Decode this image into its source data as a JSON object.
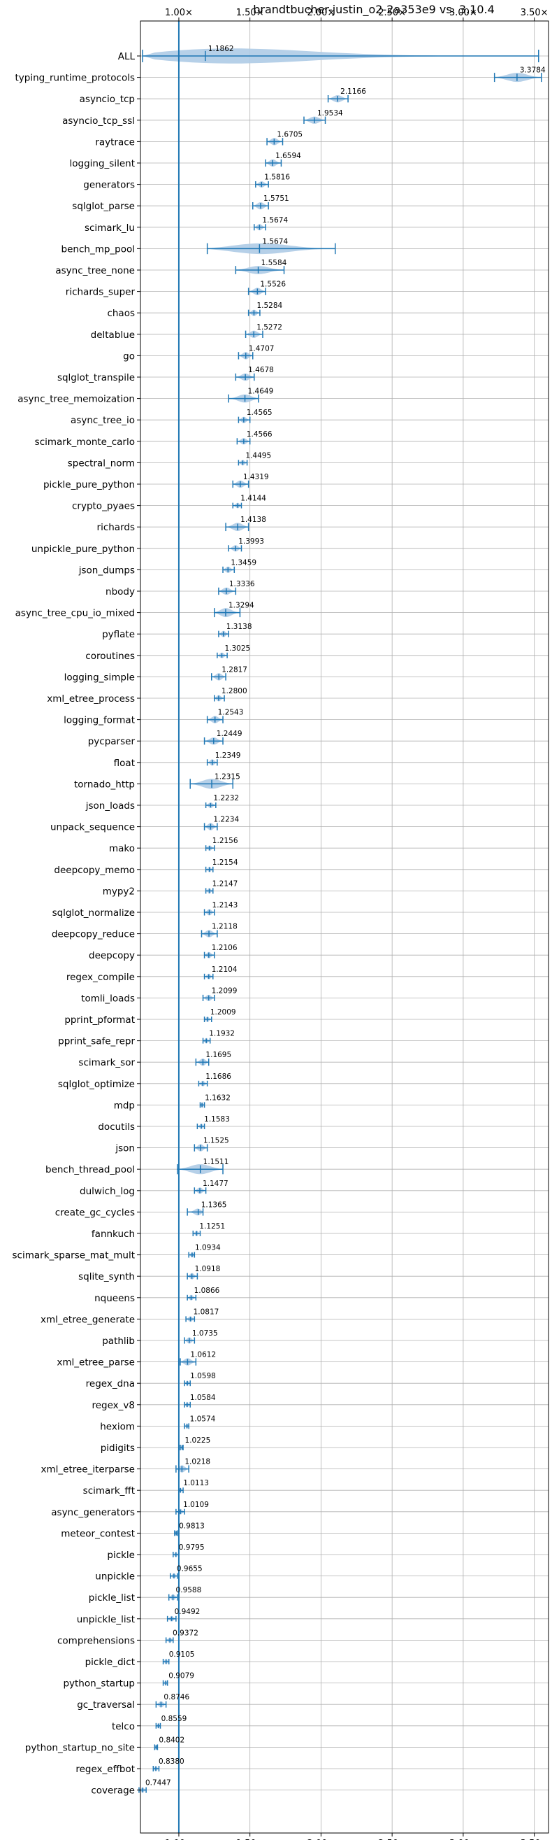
{
  "chart_data": {
    "type": "violin",
    "title": "brandtbucher-justin_o2-2a353e9 vs. 3.10.4",
    "xlabel": "",
    "ylabel": "",
    "xlim": [
      0.73,
      3.6
    ],
    "x_ticks": [
      1.0,
      1.5,
      2.0,
      2.5,
      3.0,
      3.5
    ],
    "x_tick_labels": [
      "1.00×",
      "1.50×",
      "2.00×",
      "2.50×",
      "3.00×",
      "3.50×"
    ],
    "baseline": 1.0,
    "grid": true,
    "colors": {
      "violin": "#aecbe6",
      "line": "#1f77b4",
      "grid": "#b0b0b0"
    },
    "benchmarks": [
      {
        "name": "ALL",
        "value": 1.1862,
        "min": 0.7447,
        "max": 3.53,
        "width": 1.0
      },
      {
        "name": "typing_runtime_protocols",
        "value": 3.3784,
        "min": 3.22,
        "max": 3.55,
        "width": 0.5
      },
      {
        "name": "asyncio_tcp",
        "value": 2.1166,
        "min": 2.05,
        "max": 2.19,
        "width": 0.4
      },
      {
        "name": "asyncio_tcp_ssl",
        "value": 1.9534,
        "min": 1.88,
        "max": 2.03,
        "width": 0.4
      },
      {
        "name": "raytrace",
        "value": 1.6705,
        "min": 1.62,
        "max": 1.73,
        "width": 0.4
      },
      {
        "name": "logging_silent",
        "value": 1.6594,
        "min": 1.61,
        "max": 1.72,
        "width": 0.4
      },
      {
        "name": "generators",
        "value": 1.5816,
        "min": 1.54,
        "max": 1.63,
        "width": 0.35
      },
      {
        "name": "sqlglot_parse",
        "value": 1.5751,
        "min": 1.52,
        "max": 1.63,
        "width": 0.4
      },
      {
        "name": "scimark_lu",
        "value": 1.5674,
        "min": 1.53,
        "max": 1.61,
        "width": 0.35
      },
      {
        "name": "bench_mp_pool",
        "value": 1.5674,
        "min": 1.2,
        "max": 2.1,
        "width": 0.6
      },
      {
        "name": "async_tree_none",
        "value": 1.5584,
        "min": 1.4,
        "max": 1.74,
        "width": 0.45
      },
      {
        "name": "richards_super",
        "value": 1.5526,
        "min": 1.49,
        "max": 1.61,
        "width": 0.4
      },
      {
        "name": "chaos",
        "value": 1.5284,
        "min": 1.49,
        "max": 1.57,
        "width": 0.35
      },
      {
        "name": "deltablue",
        "value": 1.5272,
        "min": 1.47,
        "max": 1.59,
        "width": 0.4
      },
      {
        "name": "go",
        "value": 1.4707,
        "min": 1.42,
        "max": 1.52,
        "width": 0.4
      },
      {
        "name": "sqlglot_transpile",
        "value": 1.4678,
        "min": 1.4,
        "max": 1.53,
        "width": 0.4
      },
      {
        "name": "async_tree_memoization",
        "value": 1.4649,
        "min": 1.35,
        "max": 1.56,
        "width": 0.45
      },
      {
        "name": "async_tree_io",
        "value": 1.4565,
        "min": 1.42,
        "max": 1.5,
        "width": 0.35
      },
      {
        "name": "scimark_monte_carlo",
        "value": 1.4566,
        "min": 1.41,
        "max": 1.5,
        "width": 0.35
      },
      {
        "name": "spectral_norm",
        "value": 1.4495,
        "min": 1.42,
        "max": 1.48,
        "width": 0.3
      },
      {
        "name": "pickle_pure_python",
        "value": 1.4319,
        "min": 1.38,
        "max": 1.49,
        "width": 0.4
      },
      {
        "name": "crypto_pyaes",
        "value": 1.4144,
        "min": 1.38,
        "max": 1.44,
        "width": 0.3
      },
      {
        "name": "richards",
        "value": 1.4138,
        "min": 1.33,
        "max": 1.49,
        "width": 0.45
      },
      {
        "name": "unpickle_pure_python",
        "value": 1.3993,
        "min": 1.35,
        "max": 1.44,
        "width": 0.35
      },
      {
        "name": "json_dumps",
        "value": 1.3459,
        "min": 1.31,
        "max": 1.39,
        "width": 0.35
      },
      {
        "name": "nbody",
        "value": 1.3336,
        "min": 1.28,
        "max": 1.4,
        "width": 0.4
      },
      {
        "name": "async_tree_cpu_io_mixed",
        "value": 1.3294,
        "min": 1.25,
        "max": 1.43,
        "width": 0.5
      },
      {
        "name": "pyflate",
        "value": 1.3138,
        "min": 1.28,
        "max": 1.35,
        "width": 0.35
      },
      {
        "name": "coroutines",
        "value": 1.3025,
        "min": 1.27,
        "max": 1.34,
        "width": 0.3
      },
      {
        "name": "logging_simple",
        "value": 1.2817,
        "min": 1.23,
        "max": 1.33,
        "width": 0.4
      },
      {
        "name": "xml_etree_process",
        "value": 1.28,
        "min": 1.25,
        "max": 1.32,
        "width": 0.35
      },
      {
        "name": "logging_format",
        "value": 1.2543,
        "min": 1.2,
        "max": 1.31,
        "width": 0.4
      },
      {
        "name": "pycparser",
        "value": 1.2449,
        "min": 1.18,
        "max": 1.31,
        "width": 0.4
      },
      {
        "name": "float",
        "value": 1.2349,
        "min": 1.2,
        "max": 1.27,
        "width": 0.35
      },
      {
        "name": "tornado_http",
        "value": 1.2315,
        "min": 1.08,
        "max": 1.38,
        "width": 0.55
      },
      {
        "name": "json_loads",
        "value": 1.2232,
        "min": 1.19,
        "max": 1.26,
        "width": 0.3
      },
      {
        "name": "unpack_sequence",
        "value": 1.2234,
        "min": 1.18,
        "max": 1.27,
        "width": 0.4
      },
      {
        "name": "mako",
        "value": 1.2156,
        "min": 1.19,
        "max": 1.25,
        "width": 0.3
      },
      {
        "name": "deepcopy_memo",
        "value": 1.2154,
        "min": 1.19,
        "max": 1.24,
        "width": 0.3
      },
      {
        "name": "mypy2",
        "value": 1.2147,
        "min": 1.19,
        "max": 1.24,
        "width": 0.3
      },
      {
        "name": "sqlglot_normalize",
        "value": 1.2143,
        "min": 1.18,
        "max": 1.25,
        "width": 0.35
      },
      {
        "name": "deepcopy_reduce",
        "value": 1.2118,
        "min": 1.16,
        "max": 1.27,
        "width": 0.4
      },
      {
        "name": "deepcopy",
        "value": 1.2106,
        "min": 1.18,
        "max": 1.25,
        "width": 0.35
      },
      {
        "name": "regex_compile",
        "value": 1.2104,
        "min": 1.18,
        "max": 1.24,
        "width": 0.3
      },
      {
        "name": "tomli_loads",
        "value": 1.2099,
        "min": 1.17,
        "max": 1.25,
        "width": 0.35
      },
      {
        "name": "pprint_pformat",
        "value": 1.2009,
        "min": 1.18,
        "max": 1.23,
        "width": 0.3
      },
      {
        "name": "pprint_safe_repr",
        "value": 1.1932,
        "min": 1.17,
        "max": 1.22,
        "width": 0.3
      },
      {
        "name": "scimark_sor",
        "value": 1.1695,
        "min": 1.12,
        "max": 1.21,
        "width": 0.4
      },
      {
        "name": "sqlglot_optimize",
        "value": 1.1686,
        "min": 1.14,
        "max": 1.2,
        "width": 0.3
      },
      {
        "name": "mdp",
        "value": 1.1632,
        "min": 1.15,
        "max": 1.18,
        "width": 0.25
      },
      {
        "name": "docutils",
        "value": 1.1583,
        "min": 1.13,
        "max": 1.18,
        "width": 0.3
      },
      {
        "name": "json",
        "value": 1.1525,
        "min": 1.11,
        "max": 1.2,
        "width": 0.4
      },
      {
        "name": "bench_thread_pool",
        "value": 1.1511,
        "min": 0.99,
        "max": 1.31,
        "width": 0.55
      },
      {
        "name": "dulwich_log",
        "value": 1.1477,
        "min": 1.11,
        "max": 1.19,
        "width": 0.35
      },
      {
        "name": "create_gc_cycles",
        "value": 1.1365,
        "min": 1.06,
        "max": 1.17,
        "width": 0.4
      },
      {
        "name": "fannkuch",
        "value": 1.1251,
        "min": 1.1,
        "max": 1.15,
        "width": 0.3
      },
      {
        "name": "scimark_sparse_mat_mult",
        "value": 1.0934,
        "min": 1.07,
        "max": 1.11,
        "width": 0.3
      },
      {
        "name": "sqlite_synth",
        "value": 1.0918,
        "min": 1.06,
        "max": 1.13,
        "width": 0.35
      },
      {
        "name": "nqueens",
        "value": 1.0866,
        "min": 1.06,
        "max": 1.12,
        "width": 0.3
      },
      {
        "name": "xml_etree_generate",
        "value": 1.0817,
        "min": 1.05,
        "max": 1.11,
        "width": 0.3
      },
      {
        "name": "pathlib",
        "value": 1.0735,
        "min": 1.04,
        "max": 1.11,
        "width": 0.35
      },
      {
        "name": "xml_etree_parse",
        "value": 1.0612,
        "min": 1.01,
        "max": 1.12,
        "width": 0.4
      },
      {
        "name": "regex_dna",
        "value": 1.0598,
        "min": 1.04,
        "max": 1.08,
        "width": 0.3
      },
      {
        "name": "regex_v8",
        "value": 1.0584,
        "min": 1.04,
        "max": 1.08,
        "width": 0.3
      },
      {
        "name": "hexiom",
        "value": 1.0574,
        "min": 1.04,
        "max": 1.07,
        "width": 0.25
      },
      {
        "name": "pidigits",
        "value": 1.0225,
        "min": 1.01,
        "max": 1.03,
        "width": 0.2
      },
      {
        "name": "xml_etree_iterparse",
        "value": 1.0218,
        "min": 0.98,
        "max": 1.07,
        "width": 0.4
      },
      {
        "name": "scimark_fft",
        "value": 1.0113,
        "min": 1.0,
        "max": 1.03,
        "width": 0.25
      },
      {
        "name": "async_generators",
        "value": 1.0109,
        "min": 0.98,
        "max": 1.04,
        "width": 0.3
      },
      {
        "name": "meteor_contest",
        "value": 0.9813,
        "min": 0.97,
        "max": 0.99,
        "width": 0.25
      },
      {
        "name": "pickle",
        "value": 0.9795,
        "min": 0.96,
        "max": 1.0,
        "width": 0.3
      },
      {
        "name": "unpickle",
        "value": 0.9655,
        "min": 0.94,
        "max": 0.99,
        "width": 0.3
      },
      {
        "name": "pickle_list",
        "value": 0.9588,
        "min": 0.93,
        "max": 0.99,
        "width": 0.35
      },
      {
        "name": "unpickle_list",
        "value": 0.9492,
        "min": 0.92,
        "max": 0.98,
        "width": 0.3
      },
      {
        "name": "comprehensions",
        "value": 0.9372,
        "min": 0.91,
        "max": 0.96,
        "width": 0.3
      },
      {
        "name": "pickle_dict",
        "value": 0.9105,
        "min": 0.89,
        "max": 0.93,
        "width": 0.3
      },
      {
        "name": "python_startup",
        "value": 0.9079,
        "min": 0.89,
        "max": 0.92,
        "width": 0.25
      },
      {
        "name": "gc_traversal",
        "value": 0.8746,
        "min": 0.84,
        "max": 0.91,
        "width": 0.35
      },
      {
        "name": "telco",
        "value": 0.8559,
        "min": 0.84,
        "max": 0.87,
        "width": 0.25
      },
      {
        "name": "python_startup_no_site",
        "value": 0.8402,
        "min": 0.83,
        "max": 0.85,
        "width": 0.25
      },
      {
        "name": "regex_effbot",
        "value": 0.838,
        "min": 0.82,
        "max": 0.86,
        "width": 0.25
      },
      {
        "name": "coverage",
        "value": 0.7447,
        "min": 0.72,
        "max": 0.77,
        "width": 0.3
      }
    ]
  }
}
